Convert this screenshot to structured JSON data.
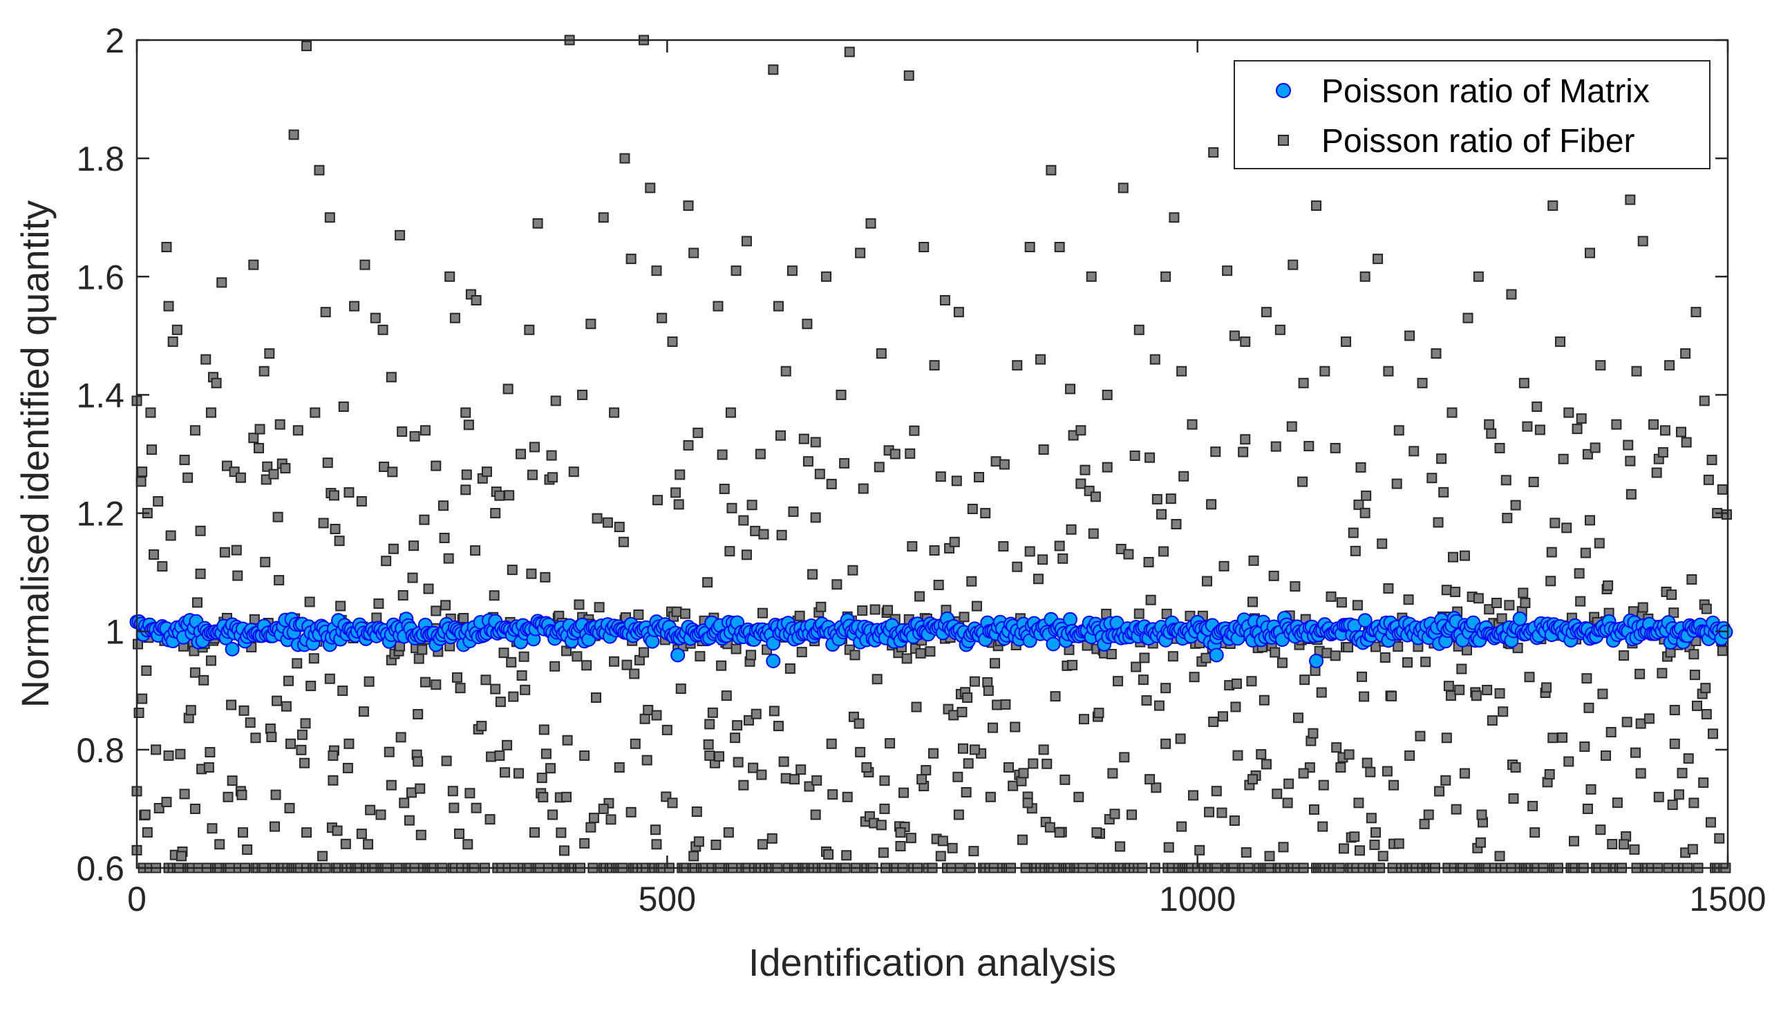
{
  "chart_data": {
    "type": "scatter",
    "title": "",
    "xlabel": "Identification analysis",
    "ylabel": "Normalised identified quantity",
    "xlim": [
      0,
      1500
    ],
    "ylim": [
      0.6,
      2
    ],
    "xticks": [
      0,
      500,
      1000,
      1500
    ],
    "xtick_labels": [
      "0",
      "500",
      "1000",
      "1500"
    ],
    "yticks": [
      0.6,
      0.8,
      1,
      1.2,
      1.4,
      1.6,
      1.8,
      2
    ],
    "ytick_labels": [
      "0.6",
      "0.8",
      "1",
      "1.2",
      "1.4",
      "1.6",
      "1.8",
      "2"
    ],
    "grid": false,
    "legend_position": "top-right",
    "n_analyses": 1500,
    "series": [
      {
        "name": "Poisson ratio of Matrix",
        "marker": "circle",
        "color": "#00a0ff",
        "edge_color": "#0000ff",
        "mean": 1.0,
        "spread": 0.02,
        "outliers": [
          [
            600,
            0.95
          ],
          [
            510,
            0.96
          ],
          [
            1018,
            0.96
          ],
          [
            1112,
            0.95
          ],
          [
            90,
            0.97
          ]
        ]
      },
      {
        "name": "Poisson ratio of Fiber",
        "marker": "square",
        "color": "#808080",
        "edge_color": "#262626",
        "sampled_points": [
          [
            0,
            1.39
          ],
          [
            5,
            1.27
          ],
          [
            10,
            1.2
          ],
          [
            13,
            1.37
          ],
          [
            16,
            1.13
          ],
          [
            20,
            1.22
          ],
          [
            24,
            1.11
          ],
          [
            28,
            1.65
          ],
          [
            30,
            1.55
          ],
          [
            34,
            1.49
          ],
          [
            38,
            1.51
          ],
          [
            45,
            1.29
          ],
          [
            48,
            1.26
          ],
          [
            55,
            1.34
          ],
          [
            60,
            1.17
          ],
          [
            65,
            1.46
          ],
          [
            70,
            1.37
          ],
          [
            72,
            1.43
          ],
          [
            75,
            1.42
          ],
          [
            80,
            1.59
          ],
          [
            85,
            1.28
          ],
          [
            92,
            1.27
          ],
          [
            98,
            1.26
          ],
          [
            110,
            1.62
          ],
          [
            115,
            1.31
          ],
          [
            120,
            1.44
          ],
          [
            125,
            1.47
          ],
          [
            135,
            1.35
          ],
          [
            148,
            1.84
          ],
          [
            152,
            1.34
          ],
          [
            160,
            1.99
          ],
          [
            168,
            1.37
          ],
          [
            172,
            1.78
          ],
          [
            178,
            1.54
          ],
          [
            182,
            1.7
          ],
          [
            186,
            1.23
          ],
          [
            195,
            1.38
          ],
          [
            205,
            1.55
          ],
          [
            212,
            1.22
          ],
          [
            215,
            1.62
          ],
          [
            225,
            1.53
          ],
          [
            232,
            1.51
          ],
          [
            240,
            1.43
          ],
          [
            248,
            1.67
          ],
          [
            262,
            1.33
          ],
          [
            272,
            1.34
          ],
          [
            282,
            1.28
          ],
          [
            295,
            1.6
          ],
          [
            300,
            1.53
          ],
          [
            310,
            1.37
          ],
          [
            315,
            1.57
          ],
          [
            320,
            1.56
          ],
          [
            330,
            1.27
          ],
          [
            338,
            1.2
          ],
          [
            350,
            1.41
          ],
          [
            362,
            1.3
          ],
          [
            370,
            1.51
          ],
          [
            378,
            1.69
          ],
          [
            395,
            1.39
          ],
          [
            408,
            2.0
          ],
          [
            412,
            1.27
          ],
          [
            420,
            1.4
          ],
          [
            428,
            1.52
          ],
          [
            440,
            1.7
          ],
          [
            450,
            1.37
          ],
          [
            460,
            1.8
          ],
          [
            466,
            1.63
          ],
          [
            478,
            2.0
          ],
          [
            484,
            1.75
          ],
          [
            490,
            1.61
          ],
          [
            495,
            1.53
          ],
          [
            505,
            1.49
          ],
          [
            520,
            1.72
          ],
          [
            525,
            1.64
          ],
          [
            548,
            1.55
          ],
          [
            560,
            1.37
          ],
          [
            565,
            1.61
          ],
          [
            575,
            1.66
          ],
          [
            588,
            1.3
          ],
          [
            600,
            1.95
          ],
          [
            605,
            1.55
          ],
          [
            612,
            1.44
          ],
          [
            618,
            1.61
          ],
          [
            632,
            1.52
          ],
          [
            640,
            1.32
          ],
          [
            650,
            1.6
          ],
          [
            664,
            1.4
          ],
          [
            672,
            1.98
          ],
          [
            682,
            1.64
          ],
          [
            692,
            1.69
          ],
          [
            702,
            1.47
          ],
          [
            715,
            1.3
          ],
          [
            728,
            1.94
          ],
          [
            742,
            1.65
          ],
          [
            752,
            1.45
          ],
          [
            762,
            1.56
          ],
          [
            775,
            1.54
          ],
          [
            800,
            1.2
          ],
          [
            830,
            1.45
          ],
          [
            842,
            1.65
          ],
          [
            852,
            1.46
          ],
          [
            862,
            1.78
          ],
          [
            870,
            1.65
          ],
          [
            880,
            1.41
          ],
          [
            890,
            1.34
          ],
          [
            900,
            1.6
          ],
          [
            915,
            1.4
          ],
          [
            930,
            1.75
          ],
          [
            945,
            1.51
          ],
          [
            960,
            1.46
          ],
          [
            970,
            1.6
          ],
          [
            978,
            1.7
          ],
          [
            985,
            1.44
          ],
          [
            995,
            1.35
          ],
          [
            1015,
            1.81
          ],
          [
            1028,
            1.61
          ],
          [
            1035,
            1.5
          ],
          [
            1045,
            1.49
          ],
          [
            1065,
            1.54
          ],
          [
            1078,
            1.51
          ],
          [
            1090,
            1.62
          ],
          [
            1100,
            1.42
          ],
          [
            1112,
            1.72
          ],
          [
            1120,
            1.44
          ],
          [
            1130,
            1.31
          ],
          [
            1140,
            1.49
          ],
          [
            1158,
            1.6
          ],
          [
            1170,
            1.63
          ],
          [
            1180,
            1.44
          ],
          [
            1190,
            1.34
          ],
          [
            1200,
            1.5
          ],
          [
            1212,
            1.42
          ],
          [
            1225,
            1.47
          ],
          [
            1240,
            1.37
          ],
          [
            1255,
            1.53
          ],
          [
            1265,
            1.6
          ],
          [
            1275,
            1.35
          ],
          [
            1285,
            1.31
          ],
          [
            1296,
            1.57
          ],
          [
            1308,
            1.42
          ],
          [
            1320,
            1.38
          ],
          [
            1335,
            1.72
          ],
          [
            1342,
            1.49
          ],
          [
            1350,
            1.37
          ],
          [
            1362,
            1.36
          ],
          [
            1370,
            1.64
          ],
          [
            1380,
            1.45
          ],
          [
            1395,
            1.35
          ],
          [
            1408,
            1.73
          ],
          [
            1414,
            1.44
          ],
          [
            1420,
            1.66
          ],
          [
            1430,
            1.35
          ],
          [
            1445,
            1.45
          ],
          [
            1460,
            1.47
          ],
          [
            1470,
            1.54
          ],
          [
            1478,
            1.39
          ],
          [
            1485,
            1.29
          ],
          [
            1490,
            1.2
          ],
          [
            1495,
            1.24
          ],
          [
            0,
            0.63
          ],
          [
            8,
            0.69
          ],
          [
            18,
            0.8
          ],
          [
            30,
            0.79
          ],
          [
            42,
            0.62
          ],
          [
            55,
            0.7
          ],
          [
            68,
            0.77
          ],
          [
            78,
            0.64
          ],
          [
            86,
            0.72
          ],
          [
            100,
            0.66
          ],
          [
            112,
            0.82
          ],
          [
            130,
            0.67
          ],
          [
            145,
            0.81
          ],
          [
            160,
            0.66
          ],
          [
            175,
            0.62
          ],
          [
            185,
            0.79
          ],
          [
            200,
            0.81
          ],
          [
            218,
            0.64
          ],
          [
            230,
            0.69
          ],
          [
            240,
            0.74
          ],
          [
            252,
            0.71
          ],
          [
            265,
            0.78
          ],
          [
            282,
            0.91
          ],
          [
            298,
            0.73
          ],
          [
            312,
            0.64
          ],
          [
            325,
            0.84
          ],
          [
            342,
            0.79
          ],
          [
            360,
            0.76
          ],
          [
            375,
            0.66
          ],
          [
            392,
            0.69
          ],
          [
            405,
            0.72
          ],
          [
            422,
            0.79
          ],
          [
            440,
            0.7
          ],
          [
            455,
            0.77
          ],
          [
            470,
            0.81
          ],
          [
            490,
            0.64
          ],
          [
            505,
            0.71
          ],
          [
            525,
            0.62
          ],
          [
            540,
            0.79
          ],
          [
            558,
            0.66
          ],
          [
            572,
            0.74
          ],
          [
            590,
            0.64
          ],
          [
            605,
            0.84
          ],
          [
            620,
            0.75
          ],
          [
            640,
            0.69
          ],
          [
            655,
            0.81
          ],
          [
            670,
            0.72
          ],
          [
            688,
            0.77
          ],
          [
            705,
            0.7
          ],
          [
            720,
            0.66
          ],
          [
            740,
            0.75
          ],
          [
            758,
            0.62
          ],
          [
            775,
            0.69
          ],
          [
            790,
            0.8
          ],
          [
            805,
            0.72
          ],
          [
            822,
            0.77
          ],
          [
            840,
            0.71
          ],
          [
            855,
            0.8
          ],
          [
            870,
            0.66
          ],
          [
            888,
            0.72
          ],
          [
            905,
            0.66
          ],
          [
            920,
            0.76
          ],
          [
            938,
            0.69
          ],
          [
            955,
            0.75
          ],
          [
            970,
            0.81
          ],
          [
            985,
            0.67
          ],
          [
            1002,
            0.63
          ],
          [
            1018,
            0.73
          ],
          [
            1035,
            0.68
          ],
          [
            1052,
            0.75
          ],
          [
            1068,
            0.62
          ],
          [
            1085,
            0.71
          ],
          [
            1100,
            0.76
          ],
          [
            1118,
            0.67
          ],
          [
            1135,
            0.77
          ],
          [
            1152,
            0.71
          ],
          [
            1168,
            0.66
          ],
          [
            1185,
            0.74
          ],
          [
            1200,
            0.79
          ],
          [
            1218,
            0.69
          ],
          [
            1235,
            0.82
          ],
          [
            1252,
            0.76
          ],
          [
            1268,
            0.69
          ],
          [
            1285,
            0.62
          ],
          [
            1300,
            0.77
          ],
          [
            1318,
            0.66
          ],
          [
            1335,
            0.82
          ],
          [
            1350,
            0.78
          ],
          [
            1368,
            0.7
          ],
          [
            1385,
            0.79
          ],
          [
            1402,
            0.64
          ],
          [
            1418,
            0.76
          ],
          [
            1435,
            0.72
          ],
          [
            1450,
            0.81
          ],
          [
            1468,
            0.71
          ],
          [
            1480,
            0.86
          ],
          [
            1492,
            0.65
          ]
        ]
      }
    ],
    "legend": [
      "Poisson ratio of Matrix",
      "Poisson ratio of Fiber"
    ]
  }
}
